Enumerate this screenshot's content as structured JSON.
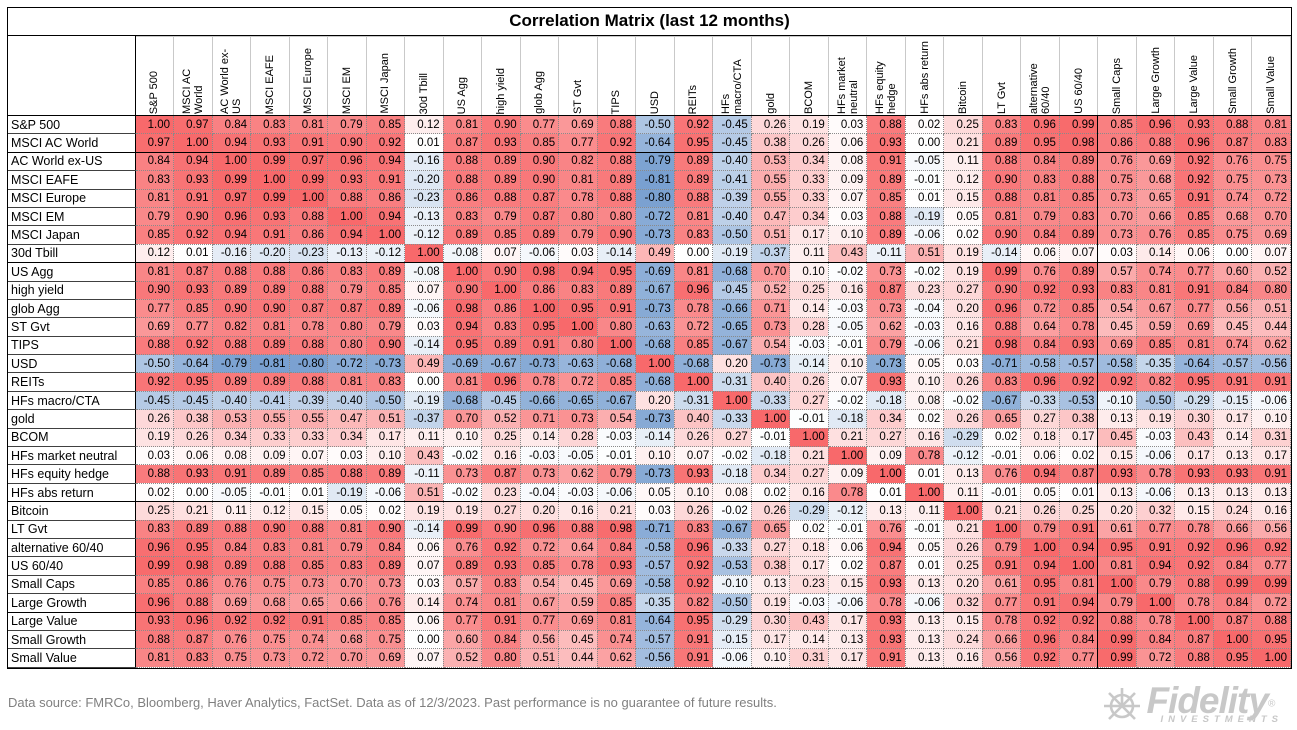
{
  "title": "Correlation Matrix (last 12 months)",
  "footer": {
    "text": "Data source: FMRCo, Bloomberg, Haver Analytics, FactSet. Data as of 12/3/2023. Past performance is no guarantee of future results."
  },
  "logo": {
    "brand": "Fidelity",
    "registered": "®",
    "sub": "INVESTMENTS"
  },
  "colors": {
    "max_positive": "#F8696B",
    "mid": "#FFFFFF",
    "max_negative": "#5A8AC6",
    "grid_dotted": "#8a8a8a",
    "footnote_gray": "#808080",
    "logo_gray": "#c8c8c8"
  },
  "chart_data": {
    "type": "heatmap",
    "title": "Correlation Matrix (last 12 months)",
    "value_range": [
      -1,
      1
    ],
    "legend": "none",
    "columns": [
      "S&P 500",
      "MSCI AC World",
      "AC World ex-US",
      "MSCI EAFE",
      "MSCI Europe",
      "MSCI EM",
      "MSCI Japan",
      "30d Tbill",
      "US Agg",
      "high yield",
      "glob Agg",
      "ST Gvt",
      "TIPS",
      "USD",
      "REITs",
      "HFs macro/CTA",
      "gold",
      "BCOM",
      "HFs market neutral",
      "HFs equity hedge",
      "HFs abs return",
      "Bitcoin",
      "LT Gvt",
      "alternative 60/40",
      "US 60/40",
      "Small Caps",
      "Large Growth",
      "Large Value",
      "Small Growth",
      "Small Value"
    ],
    "rows": [
      "S&P 500",
      "MSCI AC World",
      "AC World ex-US",
      "MSCI EAFE",
      "MSCI Europe",
      "MSCI EM",
      "MSCI Japan",
      "30d Tbill",
      "US Agg",
      "high yield",
      "glob Agg",
      "ST Gvt",
      "TIPS",
      "USD",
      "REITs",
      "HFs macro/CTA",
      "gold",
      "BCOM",
      "HFs market neutral",
      "HFs equity hedge",
      "HFs abs return",
      "Bitcoin",
      "LT Gvt",
      "alternative 60/40",
      "US 60/40",
      "Small Caps",
      "Large Growth",
      "Large Value",
      "Small Growth",
      "Small Value"
    ],
    "values": [
      [
        1.0,
        0.97,
        0.84,
        0.83,
        0.81,
        0.79,
        0.85,
        0.12,
        0.81,
        0.9,
        0.77,
        0.69,
        0.88,
        -0.5,
        0.92,
        -0.45,
        0.26,
        0.19,
        0.03,
        0.88,
        0.02,
        0.25,
        0.83,
        0.96,
        0.99,
        0.85,
        0.96,
        0.93,
        0.88,
        0.81
      ],
      [
        0.97,
        1.0,
        0.94,
        0.93,
        0.91,
        0.9,
        0.92,
        0.01,
        0.87,
        0.93,
        0.85,
        0.77,
        0.92,
        -0.64,
        0.95,
        -0.45,
        0.38,
        0.26,
        0.06,
        0.93,
        0.0,
        0.21,
        0.89,
        0.95,
        0.98,
        0.86,
        0.88,
        0.96,
        0.87,
        0.83
      ],
      [
        0.84,
        0.94,
        1.0,
        0.99,
        0.97,
        0.96,
        0.94,
        -0.16,
        0.88,
        0.89,
        0.9,
        0.82,
        0.88,
        -0.79,
        0.89,
        -0.4,
        0.53,
        0.34,
        0.08,
        0.91,
        -0.05,
        0.11,
        0.88,
        0.84,
        0.89,
        0.76,
        0.69,
        0.92,
        0.76,
        0.75
      ],
      [
        0.83,
        0.93,
        0.99,
        1.0,
        0.99,
        0.93,
        0.91,
        -0.2,
        0.88,
        0.89,
        0.9,
        0.81,
        0.89,
        -0.81,
        0.89,
        -0.41,
        0.55,
        0.33,
        0.09,
        0.89,
        -0.01,
        0.12,
        0.9,
        0.83,
        0.88,
        0.75,
        0.68,
        0.92,
        0.75,
        0.73
      ],
      [
        0.81,
        0.91,
        0.97,
        0.99,
        1.0,
        0.88,
        0.86,
        -0.23,
        0.86,
        0.88,
        0.87,
        0.78,
        0.88,
        -0.8,
        0.88,
        -0.39,
        0.55,
        0.33,
        0.07,
        0.85,
        0.01,
        0.15,
        0.88,
        0.81,
        0.85,
        0.73,
        0.65,
        0.91,
        0.74,
        0.72
      ],
      [
        0.79,
        0.9,
        0.96,
        0.93,
        0.88,
        1.0,
        0.94,
        -0.13,
        0.83,
        0.79,
        0.87,
        0.8,
        0.8,
        -0.72,
        0.81,
        -0.4,
        0.47,
        0.34,
        0.03,
        0.88,
        -0.19,
        0.05,
        0.81,
        0.79,
        0.83,
        0.7,
        0.66,
        0.85,
        0.68,
        0.7
      ],
      [
        0.85,
        0.92,
        0.94,
        0.91,
        0.86,
        0.94,
        1.0,
        -0.12,
        0.89,
        0.85,
        0.89,
        0.79,
        0.9,
        -0.73,
        0.83,
        -0.5,
        0.51,
        0.17,
        0.1,
        0.89,
        -0.06,
        0.02,
        0.9,
        0.84,
        0.89,
        0.73,
        0.76,
        0.85,
        0.75,
        0.69
      ],
      [
        0.12,
        0.01,
        -0.16,
        -0.2,
        -0.23,
        -0.13,
        -0.12,
        1.0,
        -0.08,
        0.07,
        -0.06,
        0.03,
        -0.14,
        0.49,
        0.0,
        -0.19,
        -0.37,
        0.11,
        0.43,
        -0.11,
        0.51,
        0.19,
        -0.14,
        0.06,
        0.07,
        0.03,
        0.14,
        0.06,
        0.0,
        0.07
      ],
      [
        0.81,
        0.87,
        0.88,
        0.88,
        0.86,
        0.83,
        0.89,
        -0.08,
        1.0,
        0.9,
        0.98,
        0.94,
        0.95,
        -0.69,
        0.81,
        -0.68,
        0.7,
        0.1,
        -0.02,
        0.73,
        -0.02,
        0.19,
        0.99,
        0.76,
        0.89,
        0.57,
        0.74,
        0.77,
        0.6,
        0.52
      ],
      [
        0.9,
        0.93,
        0.89,
        0.89,
        0.88,
        0.79,
        0.85,
        0.07,
        0.9,
        1.0,
        0.86,
        0.83,
        0.89,
        -0.67,
        0.96,
        -0.45,
        0.52,
        0.25,
        0.16,
        0.87,
        0.23,
        0.27,
        0.9,
        0.92,
        0.93,
        0.83,
        0.81,
        0.91,
        0.84,
        0.8
      ],
      [
        0.77,
        0.85,
        0.9,
        0.9,
        0.87,
        0.87,
        0.89,
        -0.06,
        0.98,
        0.86,
        1.0,
        0.95,
        0.91,
        -0.73,
        0.78,
        -0.66,
        0.71,
        0.14,
        -0.03,
        0.73,
        -0.04,
        0.2,
        0.96,
        0.72,
        0.85,
        0.54,
        0.67,
        0.77,
        0.56,
        0.51
      ],
      [
        0.69,
        0.77,
        0.82,
        0.81,
        0.78,
        0.8,
        0.79,
        0.03,
        0.94,
        0.83,
        0.95,
        1.0,
        0.8,
        -0.63,
        0.72,
        -0.65,
        0.73,
        0.28,
        -0.05,
        0.62,
        -0.03,
        0.16,
        0.88,
        0.64,
        0.78,
        0.45,
        0.59,
        0.69,
        0.45,
        0.44
      ],
      [
        0.88,
        0.92,
        0.88,
        0.89,
        0.88,
        0.8,
        0.9,
        -0.14,
        0.95,
        0.89,
        0.91,
        0.8,
        1.0,
        -0.68,
        0.85,
        -0.67,
        0.54,
        -0.03,
        -0.01,
        0.79,
        -0.06,
        0.21,
        0.98,
        0.84,
        0.93,
        0.69,
        0.85,
        0.81,
        0.74,
        0.62
      ],
      [
        -0.5,
        -0.64,
        -0.79,
        -0.81,
        -0.8,
        -0.72,
        -0.73,
        0.49,
        -0.69,
        -0.67,
        -0.73,
        -0.63,
        -0.68,
        1.0,
        -0.68,
        0.2,
        -0.73,
        -0.14,
        0.1,
        -0.73,
        0.05,
        0.03,
        -0.71,
        -0.58,
        -0.57,
        -0.58,
        -0.35,
        -0.64,
        -0.57,
        -0.56
      ],
      [
        0.92,
        0.95,
        0.89,
        0.89,
        0.88,
        0.81,
        0.83,
        0.0,
        0.81,
        0.96,
        0.78,
        0.72,
        0.85,
        -0.68,
        1.0,
        -0.31,
        0.4,
        0.26,
        0.07,
        0.93,
        0.1,
        0.26,
        0.83,
        0.96,
        0.92,
        0.92,
        0.82,
        0.95,
        0.91,
        0.91
      ],
      [
        -0.45,
        -0.45,
        -0.4,
        -0.41,
        -0.39,
        -0.4,
        -0.5,
        -0.19,
        -0.68,
        -0.45,
        -0.66,
        -0.65,
        -0.67,
        0.2,
        -0.31,
        1.0,
        -0.33,
        0.27,
        -0.02,
        -0.18,
        0.08,
        -0.02,
        -0.67,
        -0.33,
        -0.53,
        -0.1,
        -0.5,
        -0.29,
        -0.15,
        -0.06
      ],
      [
        0.26,
        0.38,
        0.53,
        0.55,
        0.55,
        0.47,
        0.51,
        -0.37,
        0.7,
        0.52,
        0.71,
        0.73,
        0.54,
        -0.73,
        0.4,
        -0.33,
        1.0,
        -0.01,
        -0.18,
        0.34,
        0.02,
        0.26,
        0.65,
        0.27,
        0.38,
        0.13,
        0.19,
        0.3,
        0.17,
        0.1
      ],
      [
        0.19,
        0.26,
        0.34,
        0.33,
        0.33,
        0.34,
        0.17,
        0.11,
        0.1,
        0.25,
        0.14,
        0.28,
        -0.03,
        -0.14,
        0.26,
        0.27,
        -0.01,
        1.0,
        0.21,
        0.27,
        0.16,
        -0.29,
        0.02,
        0.18,
        0.17,
        0.45,
        -0.03,
        0.43,
        0.14,
        0.31
      ],
      [
        0.03,
        0.06,
        0.08,
        0.09,
        0.07,
        0.03,
        0.1,
        0.43,
        -0.02,
        0.16,
        -0.03,
        -0.05,
        -0.01,
        0.1,
        0.07,
        -0.02,
        -0.18,
        0.21,
        1.0,
        0.09,
        0.78,
        -0.12,
        -0.01,
        0.06,
        0.02,
        0.15,
        -0.06,
        0.17,
        0.13,
        0.17
      ],
      [
        0.88,
        0.93,
        0.91,
        0.89,
        0.85,
        0.88,
        0.89,
        -0.11,
        0.73,
        0.87,
        0.73,
        0.62,
        0.79,
        -0.73,
        0.93,
        -0.18,
        0.34,
        0.27,
        0.09,
        1.0,
        0.01,
        0.13,
        0.76,
        0.94,
        0.87,
        0.93,
        0.78,
        0.93,
        0.93,
        0.91
      ],
      [
        0.02,
        0.0,
        -0.05,
        -0.01,
        0.01,
        -0.19,
        -0.06,
        0.51,
        -0.02,
        0.23,
        -0.04,
        -0.03,
        -0.06,
        0.05,
        0.1,
        0.08,
        0.02,
        0.16,
        0.78,
        0.01,
        1.0,
        0.11,
        -0.01,
        0.05,
        0.01,
        0.13,
        -0.06,
        0.13,
        0.13,
        0.13
      ],
      [
        0.25,
        0.21,
        0.11,
        0.12,
        0.15,
        0.05,
        0.02,
        0.19,
        0.19,
        0.27,
        0.2,
        0.16,
        0.21,
        0.03,
        0.26,
        -0.02,
        0.26,
        -0.29,
        -0.12,
        0.13,
        0.11,
        1.0,
        0.21,
        0.26,
        0.25,
        0.2,
        0.32,
        0.15,
        0.24,
        0.16
      ],
      [
        0.83,
        0.89,
        0.88,
        0.9,
        0.88,
        0.81,
        0.9,
        -0.14,
        0.99,
        0.9,
        0.96,
        0.88,
        0.98,
        -0.71,
        0.83,
        -0.67,
        0.65,
        0.02,
        -0.01,
        0.76,
        -0.01,
        0.21,
        1.0,
        0.79,
        0.91,
        0.61,
        0.77,
        0.78,
        0.66,
        0.56
      ],
      [
        0.96,
        0.95,
        0.84,
        0.83,
        0.81,
        0.79,
        0.84,
        0.06,
        0.76,
        0.92,
        0.72,
        0.64,
        0.84,
        -0.58,
        0.96,
        -0.33,
        0.27,
        0.18,
        0.06,
        0.94,
        0.05,
        0.26,
        0.79,
        1.0,
        0.94,
        0.95,
        0.91,
        0.92,
        0.96,
        0.92
      ],
      [
        0.99,
        0.98,
        0.89,
        0.88,
        0.85,
        0.83,
        0.89,
        0.07,
        0.89,
        0.93,
        0.85,
        0.78,
        0.93,
        -0.57,
        0.92,
        -0.53,
        0.38,
        0.17,
        0.02,
        0.87,
        0.01,
        0.25,
        0.91,
        0.94,
        1.0,
        0.81,
        0.94,
        0.92,
        0.84,
        0.77
      ],
      [
        0.85,
        0.86,
        0.76,
        0.75,
        0.73,
        0.7,
        0.73,
        0.03,
        0.57,
        0.83,
        0.54,
        0.45,
        0.69,
        -0.58,
        0.92,
        -0.1,
        0.13,
        0.23,
        0.15,
        0.93,
        0.13,
        0.2,
        0.61,
        0.95,
        0.81,
        1.0,
        0.79,
        0.88,
        0.99,
        0.99
      ],
      [
        0.96,
        0.88,
        0.69,
        0.68,
        0.65,
        0.66,
        0.76,
        0.14,
        0.74,
        0.81,
        0.67,
        0.59,
        0.85,
        -0.35,
        0.82,
        -0.5,
        0.19,
        -0.03,
        -0.06,
        0.78,
        -0.06,
        0.32,
        0.77,
        0.91,
        0.94,
        0.79,
        1.0,
        0.78,
        0.84,
        0.72
      ],
      [
        0.93,
        0.96,
        0.92,
        0.92,
        0.91,
        0.85,
        0.85,
        0.06,
        0.77,
        0.91,
        0.77,
        0.69,
        0.81,
        -0.64,
        0.95,
        -0.29,
        0.3,
        0.43,
        0.17,
        0.93,
        0.13,
        0.15,
        0.78,
        0.92,
        0.92,
        0.88,
        0.78,
        1.0,
        0.87,
        0.88
      ],
      [
        0.88,
        0.87,
        0.76,
        0.75,
        0.74,
        0.68,
        0.75,
        0.0,
        0.6,
        0.84,
        0.56,
        0.45,
        0.74,
        -0.57,
        0.91,
        -0.15,
        0.17,
        0.14,
        0.13,
        0.93,
        0.13,
        0.24,
        0.66,
        0.96,
        0.84,
        0.99,
        0.84,
        0.87,
        1.0,
        0.95
      ],
      [
        0.81,
        0.83,
        0.75,
        0.73,
        0.72,
        0.7,
        0.69,
        0.07,
        0.52,
        0.8,
        0.51,
        0.44,
        0.62,
        -0.56,
        0.91,
        -0.06,
        0.1,
        0.31,
        0.17,
        0.91,
        0.13,
        0.16,
        0.56,
        0.92,
        0.77,
        0.99,
        0.72,
        0.88,
        0.95,
        1.0
      ]
    ],
    "group_separators": {
      "after_rows": [
        2,
        8,
        21,
        27
      ],
      "after_columns": [
        25
      ]
    }
  }
}
